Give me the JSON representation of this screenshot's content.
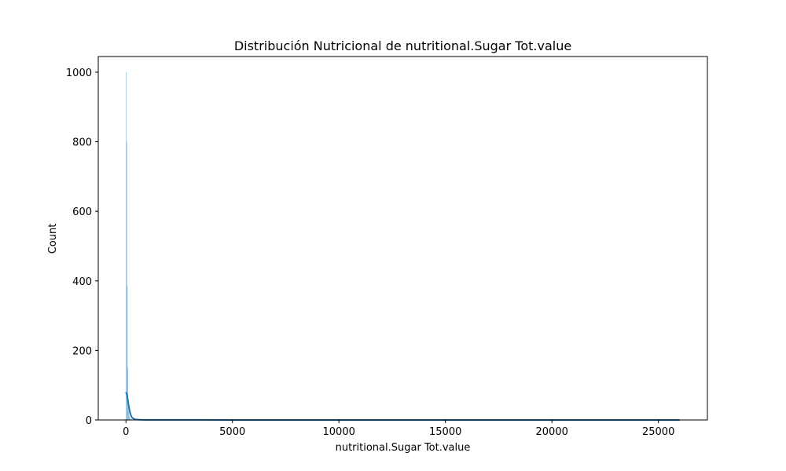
{
  "chart_data": {
    "type": "bar",
    "subtype": "histogram-with-kde",
    "title": "Distribución Nutricional de nutritional.Sugar Tot.value",
    "xlabel": "nutritional.Sugar Tot.value",
    "ylabel": "Count",
    "xlim": [
      -1300,
      27300
    ],
    "ylim": [
      0,
      1045
    ],
    "x_ticks": [
      0,
      5000,
      10000,
      15000,
      20000,
      25000
    ],
    "y_ticks": [
      0,
      200,
      400,
      600,
      800,
      1000
    ],
    "grid": false,
    "legend": "none",
    "colors": {
      "bar_fill": "#1f77b4",
      "bar_fill_opacity": 0.5,
      "kde_line": "#1f77b4",
      "axes": "#000000"
    },
    "bins": [
      {
        "x0": 0,
        "x1": 26,
        "count": 1000
      },
      {
        "x0": 26,
        "x1": 52,
        "count": 800
      },
      {
        "x0": 52,
        "x1": 78,
        "count": 385
      },
      {
        "x0": 78,
        "x1": 104,
        "count": 150
      },
      {
        "x0": 104,
        "x1": 130,
        "count": 60
      },
      {
        "x0": 130,
        "x1": 156,
        "count": 25
      },
      {
        "x0": 156,
        "x1": 182,
        "count": 10
      },
      {
        "x0": 182,
        "x1": 208,
        "count": 5
      },
      {
        "x0": 208,
        "x1": 260,
        "count": 2
      }
    ],
    "kde": {
      "x": [
        0,
        50,
        100,
        150,
        200,
        250,
        300,
        400,
        500,
        700,
        1000,
        2000,
        5000,
        10000,
        15000,
        20000,
        26000
      ],
      "y": [
        80,
        72,
        52,
        34,
        20,
        11,
        6,
        2.5,
        1.2,
        0.6,
        0.3,
        0.2,
        0.1,
        0.05,
        0.03,
        0.02,
        0.01
      ]
    }
  }
}
